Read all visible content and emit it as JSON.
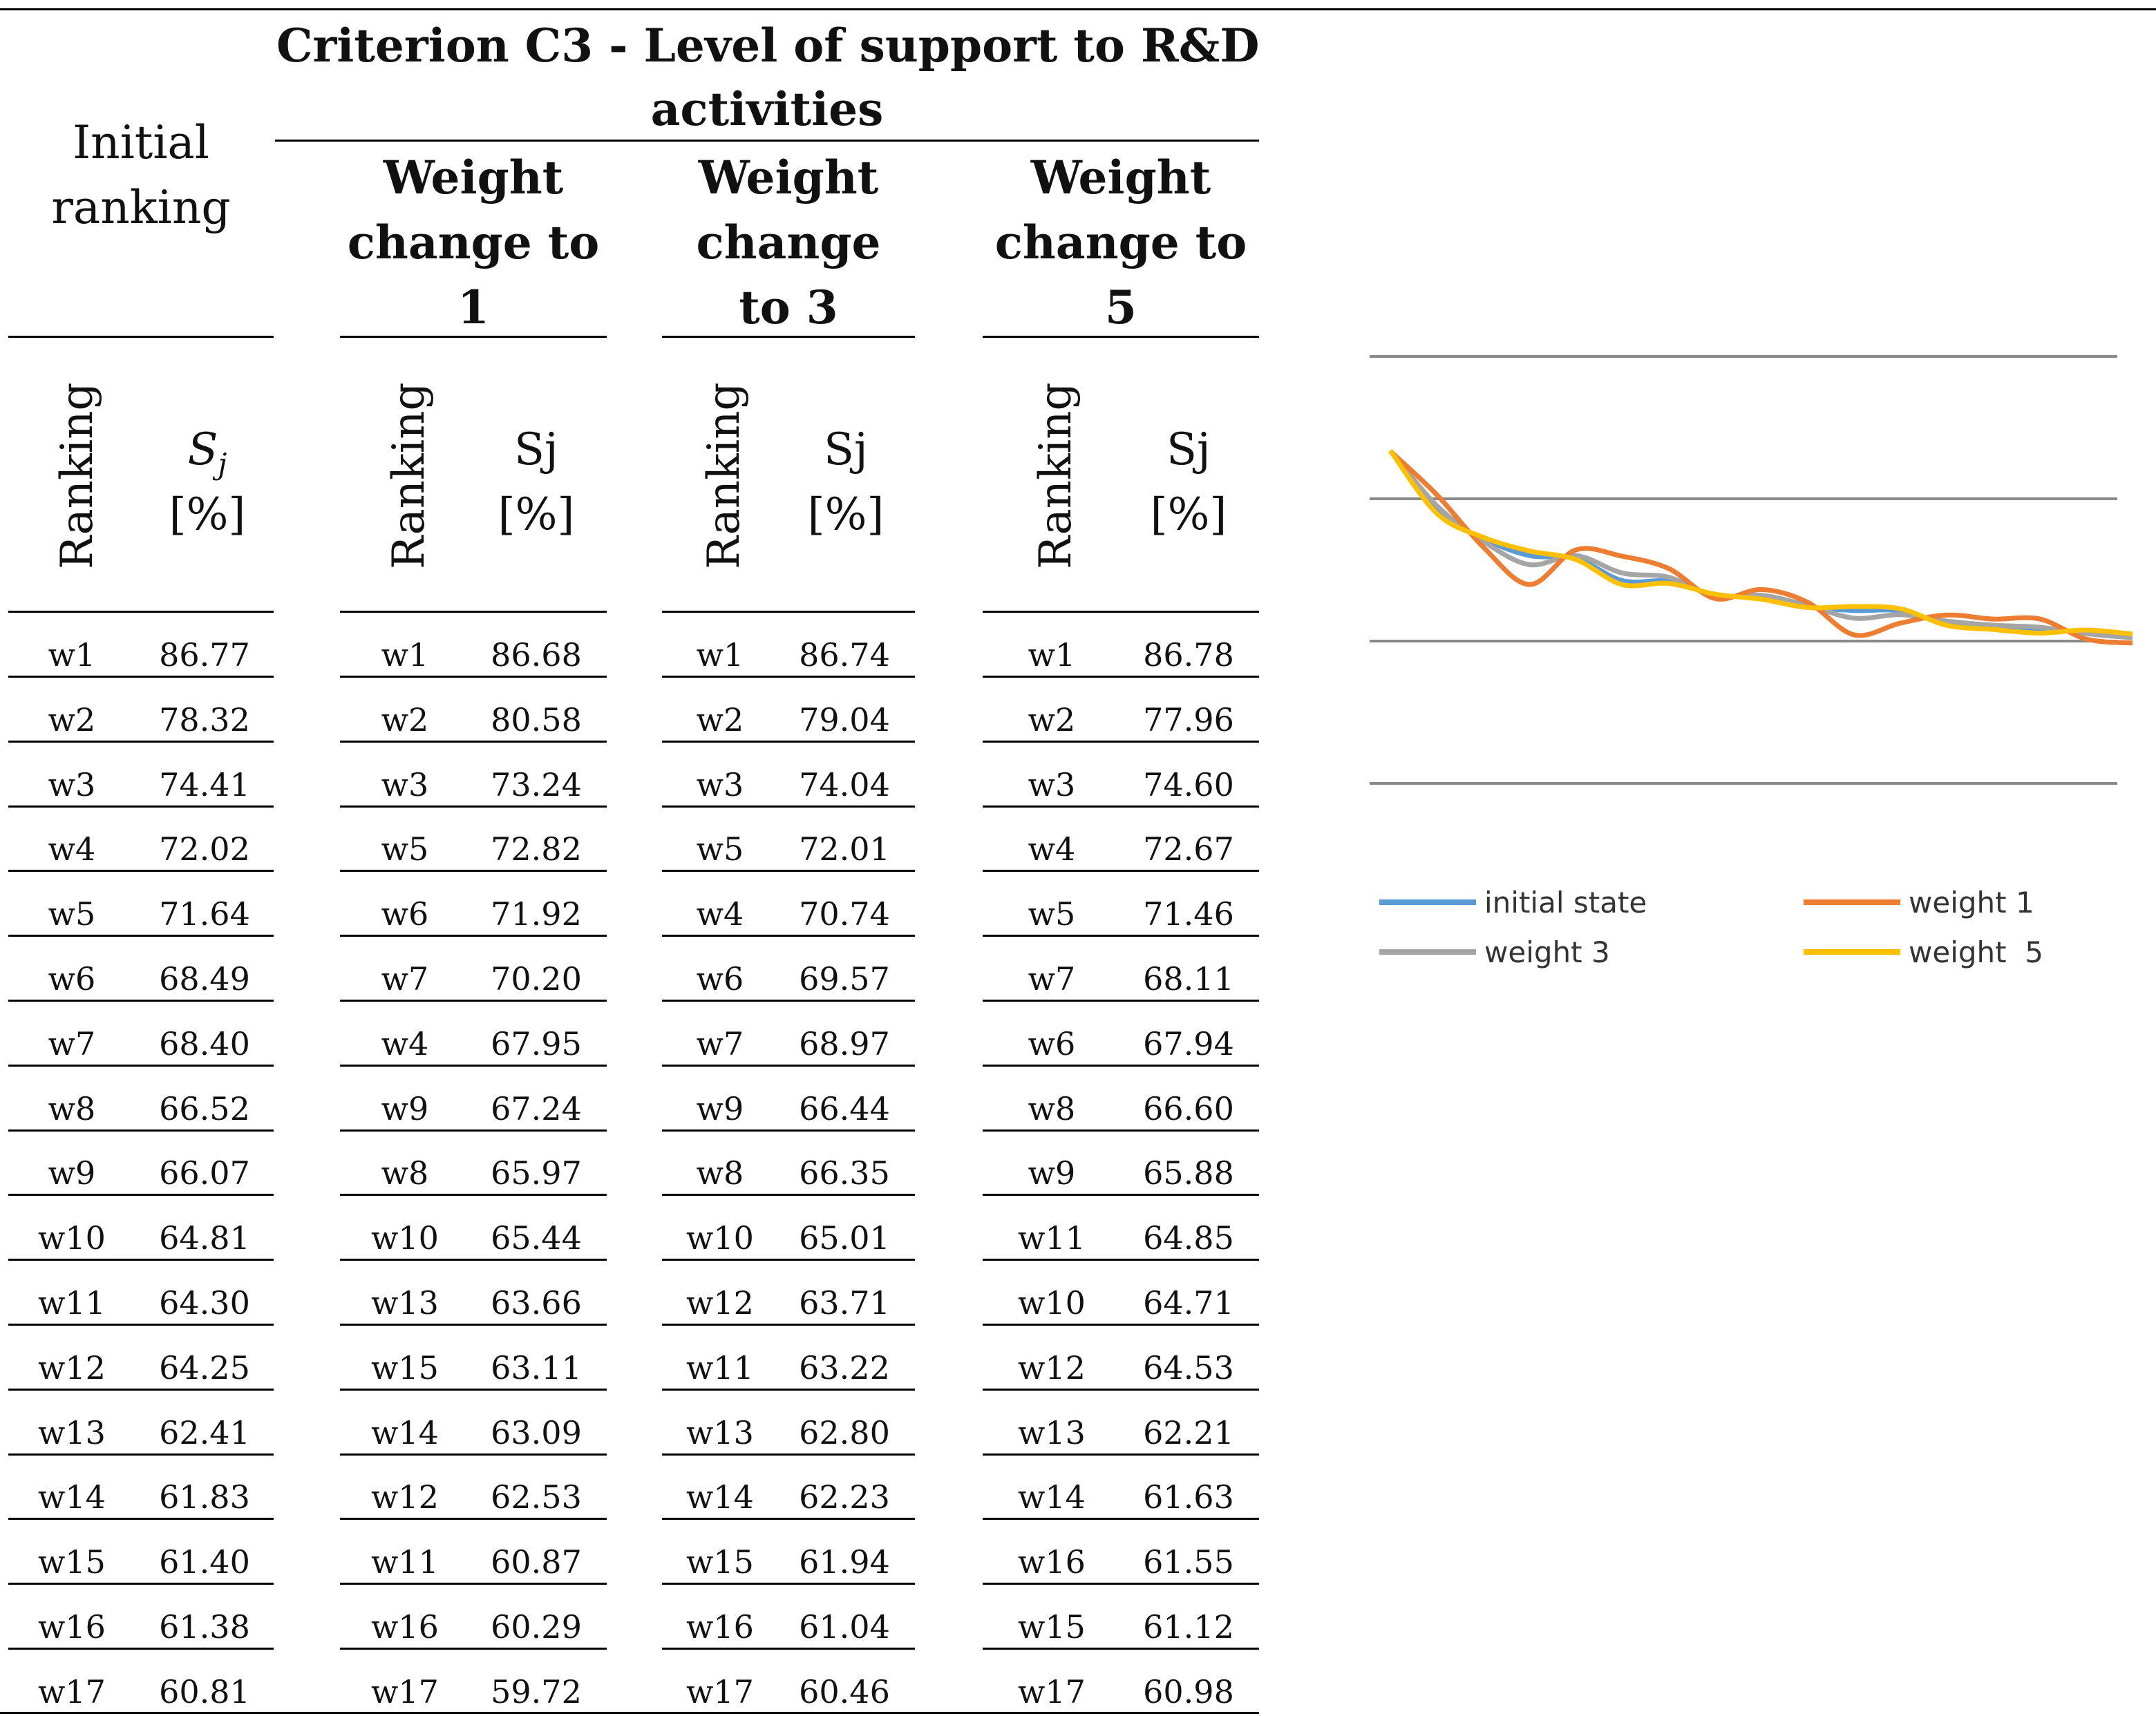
{
  "table": {
    "criterion_title_line1": "Criterion C3 - Level of support to R&D",
    "criterion_title_line2": "activities",
    "initial_ranking_line1": "Initial",
    "initial_ranking_line2": "ranking",
    "groups": [
      {
        "line1": "Weight",
        "line2": "change to",
        "line3": "1"
      },
      {
        "line1": "Weight",
        "line2": "change",
        "line3": "to 3"
      },
      {
        "line1": "Weight",
        "line2": "change to",
        "line3": "5"
      }
    ],
    "ranking_label": "Ranking",
    "sj_label_initial": "S",
    "sj_sub_initial": "j",
    "sj_label": "Sj",
    "percent_label": "[%]",
    "rows": [
      [
        "w1",
        "86.77",
        "w1",
        "86.68",
        "w1",
        "86.74",
        "w1",
        "86.78"
      ],
      [
        "w2",
        "78.32",
        "w2",
        "80.58",
        "w2",
        "79.04",
        "w2",
        "77.96"
      ],
      [
        "w3",
        "74.41",
        "w3",
        "73.24",
        "w3",
        "74.04",
        "w3",
        "74.60"
      ],
      [
        "w4",
        "72.02",
        "w5",
        "72.82",
        "w5",
        "72.01",
        "w4",
        "72.67"
      ],
      [
        "w5",
        "71.64",
        "w6",
        "71.92",
        "w4",
        "70.74",
        "w5",
        "71.46"
      ],
      [
        "w6",
        "68.49",
        "w7",
        "70.20",
        "w6",
        "69.57",
        "w7",
        "68.11"
      ],
      [
        "w7",
        "68.40",
        "w4",
        "67.95",
        "w7",
        "68.97",
        "w6",
        "67.94"
      ],
      [
        "w8",
        "66.52",
        "w9",
        "67.24",
        "w9",
        "66.44",
        "w8",
        "66.60"
      ],
      [
        "w9",
        "66.07",
        "w8",
        "65.97",
        "w8",
        "66.35",
        "w9",
        "65.88"
      ],
      [
        "w10",
        "64.81",
        "w10",
        "65.44",
        "w10",
        "65.01",
        "w11",
        "64.85"
      ],
      [
        "w11",
        "64.30",
        "w13",
        "63.66",
        "w12",
        "63.71",
        "w10",
        "64.71"
      ],
      [
        "w12",
        "64.25",
        "w15",
        "63.11",
        "w11",
        "63.22",
        "w12",
        "64.53"
      ],
      [
        "w13",
        "62.41",
        "w14",
        "63.09",
        "w13",
        "62.80",
        "w13",
        "62.21"
      ],
      [
        "w14",
        "61.83",
        "w12",
        "62.53",
        "w14",
        "62.23",
        "w14",
        "61.63"
      ],
      [
        "w15",
        "61.40",
        "w11",
        "60.87",
        "w15",
        "61.94",
        "w16",
        "61.55"
      ],
      [
        "w16",
        "61.38",
        "w16",
        "60.29",
        "w16",
        "61.04",
        "w15",
        "61.12"
      ],
      [
        "w17",
        "60.81",
        "w17",
        "59.72",
        "w17",
        "60.46",
        "w17",
        "60.98"
      ]
    ]
  },
  "chart_data": {
    "type": "line",
    "title": "",
    "xlabel": "",
    "ylabel": "",
    "x": [
      1,
      2,
      3,
      4,
      5,
      6,
      7,
      8,
      9,
      10,
      11,
      12,
      13,
      14,
      15,
      16,
      17
    ],
    "ylim": [
      40,
      100
    ],
    "grid": true,
    "legend_position": "bottom",
    "series": [
      {
        "name": "initial state",
        "color": "#5B9BD5",
        "values": [
          86.77,
          78.32,
          74.41,
          72.02,
          71.64,
          68.49,
          68.4,
          66.52,
          66.07,
          64.81,
          64.3,
          64.25,
          62.41,
          61.83,
          61.4,
          61.38,
          60.81
        ]
      },
      {
        "name": "weight 1",
        "color": "#ED7D31",
        "values": [
          86.68,
          80.58,
          73.24,
          67.95,
          72.82,
          71.92,
          70.2,
          65.97,
          67.24,
          65.44,
          60.87,
          62.53,
          63.66,
          63.09,
          63.11,
          60.29,
          59.72
        ]
      },
      {
        "name": "weight 3",
        "color": "#A5A5A5",
        "values": [
          86.74,
          79.04,
          74.04,
          70.74,
          72.01,
          69.57,
          68.97,
          66.35,
          66.44,
          65.01,
          63.22,
          63.71,
          62.8,
          62.23,
          61.94,
          61.04,
          60.46
        ]
      },
      {
        "name": "weight  5",
        "color": "#FFC000",
        "values": [
          86.78,
          77.96,
          74.6,
          72.67,
          71.46,
          67.94,
          68.11,
          66.6,
          65.88,
          64.71,
          64.85,
          64.53,
          62.21,
          61.63,
          61.12,
          61.55,
          60.98
        ]
      }
    ]
  }
}
